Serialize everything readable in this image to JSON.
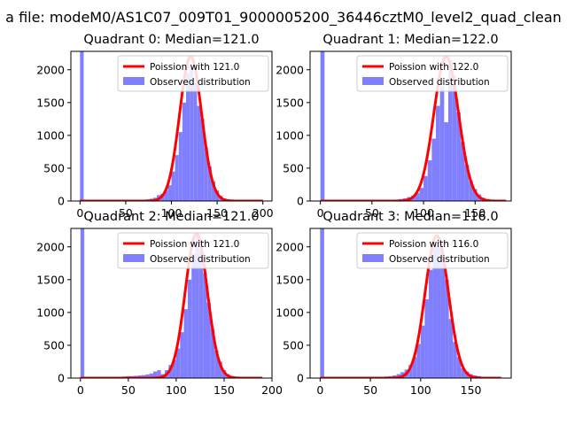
{
  "figure": {
    "suptitle": "a file: modeM0/AS1C07_009T01_9000005200_36446cztM0_level2_quad_clean"
  },
  "colors": {
    "fit_line": "#ff0000",
    "histogram": "#8080ff",
    "axes": "#000000",
    "background": "#ffffff"
  },
  "chart_data": [
    {
      "type": "bar",
      "title": "Quadrant 0: Median=121.0",
      "xlim": [
        -10,
        210
      ],
      "ylim": [
        0,
        2280
      ],
      "xticks": [
        0,
        50,
        100,
        150,
        200
      ],
      "yticks": [
        0,
        500,
        1000,
        1500,
        2000
      ],
      "legend_position": "top-right",
      "legend": [
        "Poission with 121.0",
        "Observed distribution"
      ],
      "fit": {
        "name": "Poission with 121.0",
        "mean": 121.0,
        "peak": 2200,
        "sigma": 12,
        "xmin": 0,
        "xmax": 200
      },
      "histogram": {
        "name": "Observed distribution",
        "bin_width": 4,
        "bins": [
          {
            "x": 0,
            "y": 2280
          },
          {
            "x": 4,
            "y": 15
          },
          {
            "x": 8,
            "y": 12
          },
          {
            "x": 12,
            "y": 12
          },
          {
            "x": 16,
            "y": 12
          },
          {
            "x": 20,
            "y": 10
          },
          {
            "x": 24,
            "y": 10
          },
          {
            "x": 28,
            "y": 10
          },
          {
            "x": 32,
            "y": 10
          },
          {
            "x": 36,
            "y": 10
          },
          {
            "x": 40,
            "y": 12
          },
          {
            "x": 44,
            "y": 12
          },
          {
            "x": 48,
            "y": 12
          },
          {
            "x": 52,
            "y": 12
          },
          {
            "x": 56,
            "y": 15
          },
          {
            "x": 60,
            "y": 15
          },
          {
            "x": 64,
            "y": 18
          },
          {
            "x": 68,
            "y": 20
          },
          {
            "x": 72,
            "y": 25
          },
          {
            "x": 76,
            "y": 35
          },
          {
            "x": 80,
            "y": 50
          },
          {
            "x": 84,
            "y": 90
          },
          {
            "x": 88,
            "y": 110
          },
          {
            "x": 92,
            "y": 160
          },
          {
            "x": 96,
            "y": 240
          },
          {
            "x": 100,
            "y": 450
          },
          {
            "x": 104,
            "y": 700
          },
          {
            "x": 108,
            "y": 1050
          },
          {
            "x": 112,
            "y": 1500
          },
          {
            "x": 116,
            "y": 1950
          },
          {
            "x": 120,
            "y": 2050
          },
          {
            "x": 124,
            "y": 1800
          },
          {
            "x": 128,
            "y": 1450
          },
          {
            "x": 132,
            "y": 1250
          },
          {
            "x": 136,
            "y": 820
          },
          {
            "x": 140,
            "y": 530
          },
          {
            "x": 144,
            "y": 300
          },
          {
            "x": 148,
            "y": 160
          },
          {
            "x": 152,
            "y": 80
          },
          {
            "x": 156,
            "y": 40
          },
          {
            "x": 160,
            "y": 20
          },
          {
            "x": 164,
            "y": 12
          },
          {
            "x": 168,
            "y": 8
          },
          {
            "x": 172,
            "y": 6
          },
          {
            "x": 176,
            "y": 5
          },
          {
            "x": 180,
            "y": 4
          },
          {
            "x": 184,
            "y": 3
          },
          {
            "x": 188,
            "y": 3
          },
          {
            "x": 192,
            "y": 2
          },
          {
            "x": 196,
            "y": 2
          }
        ]
      }
    },
    {
      "type": "bar",
      "title": "Quadrant 1: Median=122.0",
      "xlim": [
        -10,
        185
      ],
      "ylim": [
        0,
        2280
      ],
      "xticks": [
        0,
        50,
        100,
        150
      ],
      "yticks": [
        0,
        500,
        1000,
        1500,
        2000
      ],
      "legend_position": "top-right",
      "legend": [
        "Poission with 122.0",
        "Observed distribution"
      ],
      "fit": {
        "name": "Poission with 122.0",
        "mean": 122.0,
        "peak": 2200,
        "sigma": 12,
        "xmin": 0,
        "xmax": 180
      },
      "histogram": {
        "name": "Observed distribution",
        "bin_width": 4,
        "bins": [
          {
            "x": 0,
            "y": 2280
          },
          {
            "x": 4,
            "y": 12
          },
          {
            "x": 8,
            "y": 10
          },
          {
            "x": 12,
            "y": 10
          },
          {
            "x": 16,
            "y": 10
          },
          {
            "x": 20,
            "y": 10
          },
          {
            "x": 24,
            "y": 10
          },
          {
            "x": 28,
            "y": 10
          },
          {
            "x": 32,
            "y": 10
          },
          {
            "x": 36,
            "y": 10
          },
          {
            "x": 40,
            "y": 10
          },
          {
            "x": 44,
            "y": 12
          },
          {
            "x": 48,
            "y": 12
          },
          {
            "x": 52,
            "y": 12
          },
          {
            "x": 56,
            "y": 15
          },
          {
            "x": 60,
            "y": 15
          },
          {
            "x": 64,
            "y": 18
          },
          {
            "x": 68,
            "y": 20
          },
          {
            "x": 72,
            "y": 22
          },
          {
            "x": 76,
            "y": 30
          },
          {
            "x": 80,
            "y": 40
          },
          {
            "x": 84,
            "y": 60
          },
          {
            "x": 88,
            "y": 80
          },
          {
            "x": 92,
            "y": 120
          },
          {
            "x": 96,
            "y": 200
          },
          {
            "x": 100,
            "y": 380
          },
          {
            "x": 104,
            "y": 620
          },
          {
            "x": 108,
            "y": 950
          },
          {
            "x": 112,
            "y": 1450
          },
          {
            "x": 116,
            "y": 1750
          },
          {
            "x": 120,
            "y": 1200
          },
          {
            "x": 124,
            "y": 2150
          },
          {
            "x": 128,
            "y": 1900
          },
          {
            "x": 132,
            "y": 1350
          },
          {
            "x": 136,
            "y": 900
          },
          {
            "x": 140,
            "y": 550
          },
          {
            "x": 144,
            "y": 300
          },
          {
            "x": 148,
            "y": 180
          },
          {
            "x": 152,
            "y": 100
          },
          {
            "x": 156,
            "y": 50
          },
          {
            "x": 160,
            "y": 30
          },
          {
            "x": 164,
            "y": 20
          },
          {
            "x": 168,
            "y": 15
          },
          {
            "x": 172,
            "y": 10
          },
          {
            "x": 176,
            "y": 8
          }
        ]
      }
    },
    {
      "type": "bar",
      "title": "Quadrant 2: Median=121.0",
      "xlim": [
        -10,
        200
      ],
      "ylim": [
        0,
        2280
      ],
      "xticks": [
        0,
        50,
        100,
        150,
        200
      ],
      "yticks": [
        0,
        500,
        1000,
        1500,
        2000
      ],
      "legend_position": "top-right",
      "legend": [
        "Poission with 121.0",
        "Observed distribution"
      ],
      "fit": {
        "name": "Poission with 121.0",
        "mean": 121.0,
        "peak": 2200,
        "sigma": 11.5,
        "xmin": 0,
        "xmax": 190
      },
      "histogram": {
        "name": "Observed distribution",
        "bin_width": 4,
        "bins": [
          {
            "x": 0,
            "y": 2280
          },
          {
            "x": 4,
            "y": 15
          },
          {
            "x": 8,
            "y": 12
          },
          {
            "x": 12,
            "y": 12
          },
          {
            "x": 16,
            "y": 12
          },
          {
            "x": 20,
            "y": 12
          },
          {
            "x": 24,
            "y": 12
          },
          {
            "x": 28,
            "y": 12
          },
          {
            "x": 32,
            "y": 15
          },
          {
            "x": 36,
            "y": 15
          },
          {
            "x": 40,
            "y": 20
          },
          {
            "x": 44,
            "y": 25
          },
          {
            "x": 48,
            "y": 30
          },
          {
            "x": 52,
            "y": 30
          },
          {
            "x": 56,
            "y": 35
          },
          {
            "x": 60,
            "y": 40
          },
          {
            "x": 64,
            "y": 45
          },
          {
            "x": 68,
            "y": 55
          },
          {
            "x": 72,
            "y": 70
          },
          {
            "x": 76,
            "y": 100
          },
          {
            "x": 80,
            "y": 120
          },
          {
            "x": 84,
            "y": 60
          },
          {
            "x": 88,
            "y": 120
          },
          {
            "x": 92,
            "y": 200
          },
          {
            "x": 96,
            "y": 280
          },
          {
            "x": 100,
            "y": 450
          },
          {
            "x": 104,
            "y": 700
          },
          {
            "x": 108,
            "y": 1050
          },
          {
            "x": 112,
            "y": 1500
          },
          {
            "x": 116,
            "y": 1900
          },
          {
            "x": 120,
            "y": 2200
          },
          {
            "x": 124,
            "y": 1950
          },
          {
            "x": 128,
            "y": 1600
          },
          {
            "x": 132,
            "y": 1150
          },
          {
            "x": 136,
            "y": 750
          },
          {
            "x": 140,
            "y": 420
          },
          {
            "x": 144,
            "y": 250
          },
          {
            "x": 148,
            "y": 120
          },
          {
            "x": 152,
            "y": 60
          },
          {
            "x": 156,
            "y": 30
          },
          {
            "x": 160,
            "y": 18
          },
          {
            "x": 164,
            "y": 10
          },
          {
            "x": 168,
            "y": 8
          },
          {
            "x": 172,
            "y": 6
          },
          {
            "x": 176,
            "y": 5
          },
          {
            "x": 180,
            "y": 4
          },
          {
            "x": 184,
            "y": 3
          }
        ]
      }
    },
    {
      "type": "bar",
      "title": "Quadrant 3: Median=116.0",
      "xlim": [
        -10,
        190
      ],
      "ylim": [
        0,
        2280
      ],
      "xticks": [
        0,
        50,
        100,
        150
      ],
      "yticks": [
        0,
        500,
        1000,
        1500,
        2000
      ],
      "legend_position": "top-right",
      "legend": [
        "Poission with 116.0",
        "Observed distribution"
      ],
      "fit": {
        "name": "Poission with 116.0",
        "mean": 116.0,
        "peak": 2170,
        "sigma": 11.5,
        "xmin": 0,
        "xmax": 180
      },
      "histogram": {
        "name": "Observed distribution",
        "bin_width": 4,
        "bins": [
          {
            "x": 0,
            "y": 2280
          },
          {
            "x": 4,
            "y": 12
          },
          {
            "x": 8,
            "y": 10
          },
          {
            "x": 12,
            "y": 10
          },
          {
            "x": 16,
            "y": 10
          },
          {
            "x": 20,
            "y": 10
          },
          {
            "x": 24,
            "y": 10
          },
          {
            "x": 28,
            "y": 10
          },
          {
            "x": 32,
            "y": 10
          },
          {
            "x": 36,
            "y": 12
          },
          {
            "x": 40,
            "y": 12
          },
          {
            "x": 44,
            "y": 12
          },
          {
            "x": 48,
            "y": 15
          },
          {
            "x": 52,
            "y": 15
          },
          {
            "x": 56,
            "y": 18
          },
          {
            "x": 60,
            "y": 20
          },
          {
            "x": 64,
            "y": 25
          },
          {
            "x": 68,
            "y": 30
          },
          {
            "x": 72,
            "y": 40
          },
          {
            "x": 76,
            "y": 60
          },
          {
            "x": 80,
            "y": 90
          },
          {
            "x": 84,
            "y": 130
          },
          {
            "x": 88,
            "y": 200
          },
          {
            "x": 92,
            "y": 320
          },
          {
            "x": 96,
            "y": 520
          },
          {
            "x": 100,
            "y": 800
          },
          {
            "x": 104,
            "y": 1200
          },
          {
            "x": 108,
            "y": 1650
          },
          {
            "x": 112,
            "y": 2050
          },
          {
            "x": 116,
            "y": 2000
          },
          {
            "x": 120,
            "y": 1900
          },
          {
            "x": 124,
            "y": 1500
          },
          {
            "x": 128,
            "y": 900
          },
          {
            "x": 132,
            "y": 550
          },
          {
            "x": 136,
            "y": 320
          },
          {
            "x": 140,
            "y": 150
          },
          {
            "x": 144,
            "y": 100
          },
          {
            "x": 148,
            "y": 60
          },
          {
            "x": 152,
            "y": 40
          },
          {
            "x": 156,
            "y": 30
          },
          {
            "x": 160,
            "y": 20
          },
          {
            "x": 164,
            "y": 15
          },
          {
            "x": 168,
            "y": 10
          },
          {
            "x": 172,
            "y": 8
          },
          {
            "x": 176,
            "y": 6
          }
        ]
      }
    }
  ]
}
